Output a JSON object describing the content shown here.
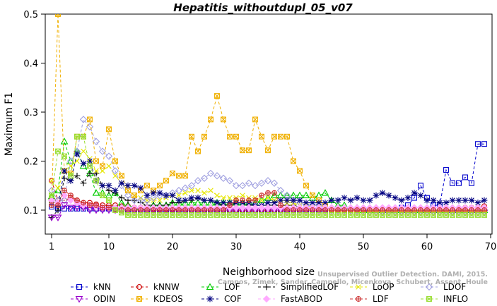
{
  "chart_data": {
    "type": "line",
    "title": "Hepatitis_withoutdupl_05_v07",
    "xlabel": "Neighborhood size",
    "ylabel": "Maximum F1",
    "xlim": [
      1,
      70
    ],
    "ylim": [
      0.08,
      0.5
    ],
    "xticks": [
      "10",
      "20",
      "30",
      "40",
      "50",
      "60",
      "70"
    ],
    "xtick_first": "1",
    "yticks": [
      "0.1",
      "0.2",
      "0.3",
      "0.4",
      "0.5"
    ],
    "legend_placement": "bottom",
    "watermark": [
      "Unsupervised Outlier Detection. DAMI, 2015.",
      "Campos, Zimek, Sander, Campello, Micenkova, Schubert, Assent, Houle"
    ],
    "series": [
      {
        "name": "kNN",
        "color": "#0000cc",
        "marker": "square",
        "x_start": 1,
        "values": [
          0.107,
          0.103,
          0.103,
          0.103,
          0.103,
          0.103,
          0.103,
          0.103,
          0.103,
          0.103,
          0.103,
          0.1,
          0.1,
          0.1,
          0.1,
          0.1,
          0.1,
          0.1,
          0.1,
          0.1,
          0.1,
          0.1,
          0.1,
          0.1,
          0.1,
          0.1,
          0.1,
          0.1,
          0.1,
          0.1,
          0.1,
          0.1,
          0.1,
          0.1,
          0.1,
          0.1,
          0.1,
          0.1,
          0.1,
          0.1,
          0.1,
          0.1,
          0.1,
          0.1,
          0.1,
          0.1,
          0.1,
          0.1,
          0.1,
          0.1,
          0.1,
          0.1,
          0.1,
          0.1,
          0.1,
          0.105,
          0.11,
          0.125,
          0.15,
          0.125,
          0.11,
          0.11,
          0.182,
          0.155,
          0.155,
          0.167,
          0.155,
          0.235,
          0.235
        ]
      },
      {
        "name": "kNNW",
        "color": "#cc0000",
        "marker": "circle",
        "x_start": 1,
        "values": [
          0.16,
          0.12,
          0.12,
          0.125,
          0.12,
          0.115,
          0.115,
          0.112,
          0.11,
          0.11,
          0.11,
          0.108,
          0.108,
          0.105,
          0.105,
          0.105,
          0.103,
          0.103,
          0.103,
          0.103,
          0.1,
          0.1,
          0.1,
          0.1,
          0.1,
          0.1,
          0.1,
          0.1,
          0.1,
          0.1,
          0.1,
          0.1,
          0.1,
          0.1,
          0.1,
          0.1,
          0.1,
          0.1,
          0.1,
          0.1,
          0.1,
          0.1,
          0.1,
          0.1,
          0.1,
          0.1,
          0.1,
          0.1,
          0.1,
          0.1,
          0.1,
          0.1,
          0.1,
          0.1,
          0.1,
          0.1,
          0.1,
          0.1,
          0.1,
          0.1,
          0.1,
          0.1,
          0.1,
          0.1,
          0.1,
          0.105,
          0.105,
          0.105,
          0.108
        ]
      },
      {
        "name": "LOF",
        "color": "#00cc00",
        "marker": "triangle-up",
        "x_start": 1,
        "values": [
          0.128,
          0.14,
          0.24,
          0.2,
          0.22,
          0.19,
          0.175,
          0.135,
          0.135,
          0.13,
          0.135,
          0.115,
          0.11,
          0.105,
          0.105,
          0.105,
          0.11,
          0.11,
          0.11,
          0.115,
          0.115,
          0.115,
          0.115,
          0.115,
          0.115,
          0.115,
          0.115,
          0.115,
          0.115,
          0.115,
          0.115,
          0.115,
          0.115,
          0.12,
          0.125,
          0.13,
          0.13,
          0.13,
          0.13,
          0.13,
          0.13,
          0.125,
          0.13,
          0.135,
          0.12,
          0.11,
          0.11,
          0.105,
          0.105,
          0.1,
          0.1,
          0.1,
          0.1,
          0.1,
          0.1,
          0.1,
          0.1,
          0.1,
          0.1,
          0.1,
          0.1,
          0.1,
          0.1,
          0.1,
          0.1,
          0.1,
          0.1,
          0.1,
          0.1
        ]
      },
      {
        "name": "SimplifiedLOF",
        "color": "#000000",
        "marker": "plus",
        "x_start": 1,
        "values": [
          0.085,
          0.1,
          0.165,
          0.16,
          0.17,
          0.155,
          0.175,
          0.175,
          0.15,
          0.14,
          0.135,
          0.125,
          0.12,
          0.12,
          0.115,
          0.11,
          0.11,
          0.11,
          0.11,
          0.115,
          0.115,
          0.12,
          0.12,
          0.125,
          0.12,
          0.12,
          0.115,
          0.11,
          0.11,
          0.115,
          0.115,
          0.11,
          0.11,
          0.11,
          0.11,
          0.11,
          0.11,
          0.11,
          0.11,
          0.105,
          0.105,
          0.105,
          0.105,
          0.1,
          0.1,
          0.1,
          0.1,
          0.1,
          0.1,
          0.1,
          0.1,
          0.1,
          0.1,
          0.1,
          0.1,
          0.1,
          0.1,
          0.1,
          0.1,
          0.1,
          0.1,
          0.1,
          0.1,
          0.1,
          0.1,
          0.1,
          0.1,
          0.1,
          0.1
        ]
      },
      {
        "name": "LoOP",
        "color": "#e6e600",
        "marker": "x",
        "x_start": 1,
        "values": [
          0.16,
          0.145,
          0.18,
          0.19,
          0.2,
          0.22,
          0.205,
          0.18,
          0.18,
          0.19,
          0.17,
          0.155,
          0.14,
          0.13,
          0.125,
          0.12,
          0.12,
          0.12,
          0.125,
          0.13,
          0.13,
          0.135,
          0.14,
          0.14,
          0.135,
          0.14,
          0.13,
          0.125,
          0.125,
          0.125,
          0.13,
          0.125,
          0.125,
          0.12,
          0.125,
          0.12,
          0.12,
          0.115,
          0.115,
          0.11,
          0.11,
          0.105,
          0.105,
          0.1,
          0.1,
          0.1,
          0.1,
          0.1,
          0.1,
          0.1,
          0.1,
          0.1,
          0.1,
          0.1,
          0.1,
          0.1,
          0.1,
          0.1,
          0.1,
          0.1,
          0.1,
          0.1,
          0.1,
          0.1,
          0.1,
          0.1,
          0.1,
          0.1,
          0.1
        ]
      },
      {
        "name": "LDOF",
        "color": "#a0a0e0",
        "marker": "diamond",
        "x_start": 1,
        "values": [
          0.14,
          0.12,
          0.12,
          0.2,
          0.22,
          0.285,
          0.27,
          0.24,
          0.22,
          0.21,
          0.18,
          0.15,
          0.13,
          0.12,
          0.12,
          0.12,
          0.125,
          0.13,
          0.13,
          0.135,
          0.14,
          0.145,
          0.15,
          0.16,
          0.165,
          0.175,
          0.17,
          0.165,
          0.16,
          0.15,
          0.15,
          0.155,
          0.15,
          0.155,
          0.16,
          0.155,
          0.14,
          0.13,
          0.12,
          0.115,
          0.11,
          0.11,
          0.11,
          0.105,
          0.105,
          0.1,
          0.1,
          0.1,
          0.1,
          0.1,
          0.1,
          0.1,
          0.1,
          0.1,
          0.1,
          0.1,
          0.1,
          0.1,
          0.1,
          0.1,
          0.1,
          0.1,
          0.1,
          0.1,
          0.1,
          0.1,
          0.1,
          0.1,
          0.1
        ]
      },
      {
        "name": "ODIN",
        "color": "#9900cc",
        "marker": "triangle-down",
        "x_start": 1,
        "values": [
          0.085,
          0.085,
          0.11,
          0.105,
          0.105,
          0.105,
          0.1,
          0.1,
          0.1,
          0.1,
          0.1,
          0.1,
          0.1,
          0.1,
          0.1,
          0.1,
          0.1,
          0.1,
          0.1,
          0.1,
          0.1,
          0.1,
          0.1,
          0.1,
          0.1,
          0.1,
          0.1,
          0.1,
          0.1,
          0.1,
          0.1,
          0.1,
          0.1,
          0.1,
          0.1,
          0.1,
          0.1,
          0.1,
          0.1,
          0.1,
          0.1,
          0.1,
          0.1,
          0.1,
          0.1,
          0.1,
          0.1,
          0.1,
          0.1,
          0.1,
          0.095,
          0.095,
          0.095,
          0.095,
          0.095,
          0.095,
          0.095,
          0.095,
          0.095,
          0.095,
          0.095,
          0.095,
          0.095,
          0.095,
          0.095,
          0.095,
          0.095,
          0.095,
          0.095
        ]
      },
      {
        "name": "KDEOS",
        "color": "#f0b000",
        "marker": "square-x",
        "x_start": 1,
        "values": [
          0.12,
          0.5,
          0.18,
          0.175,
          0.25,
          0.25,
          0.285,
          0.2,
          0.19,
          0.265,
          0.2,
          0.17,
          0.14,
          0.13,
          0.14,
          0.15,
          0.14,
          0.15,
          0.16,
          0.175,
          0.17,
          0.17,
          0.25,
          0.22,
          0.25,
          0.285,
          0.333,
          0.285,
          0.25,
          0.25,
          0.222,
          0.222,
          0.285,
          0.25,
          0.222,
          0.25,
          0.25,
          0.25,
          0.2,
          0.18,
          0.15,
          0.13,
          0.12,
          0.11,
          0.1,
          0.1,
          0.1,
          0.1,
          0.1,
          0.1,
          0.1,
          0.1,
          0.1,
          0.1,
          0.1,
          0.1,
          0.1,
          0.1,
          0.1,
          0.1,
          0.1,
          0.1,
          0.1,
          0.1,
          0.1,
          0.1,
          0.1,
          0.1,
          0.1
        ]
      },
      {
        "name": "COF",
        "color": "#000080",
        "marker": "asterisk",
        "x_start": 1,
        "values": [
          0.12,
          0.11,
          0.18,
          0.16,
          0.215,
          0.195,
          0.2,
          0.16,
          0.15,
          0.15,
          0.14,
          0.155,
          0.15,
          0.15,
          0.145,
          0.13,
          0.135,
          0.135,
          0.13,
          0.13,
          0.12,
          0.12,
          0.125,
          0.125,
          0.12,
          0.12,
          0.115,
          0.115,
          0.115,
          0.115,
          0.115,
          0.115,
          0.11,
          0.11,
          0.115,
          0.115,
          0.12,
          0.12,
          0.12,
          0.12,
          0.115,
          0.115,
          0.115,
          0.115,
          0.12,
          0.12,
          0.125,
          0.12,
          0.125,
          0.12,
          0.12,
          0.13,
          0.135,
          0.13,
          0.125,
          0.12,
          0.125,
          0.135,
          0.13,
          0.12,
          0.12,
          0.115,
          0.115,
          0.12,
          0.12,
          0.12,
          0.12,
          0.115,
          0.12
        ]
      },
      {
        "name": "FastABOD",
        "color": "#ffaaff",
        "marker": "diamond-filled",
        "x_start": 1,
        "values": [
          0.12,
          0.115,
          0.13,
          0.12,
          0.115,
          0.11,
          0.11,
          0.108,
          0.105,
          0.105,
          0.105,
          0.105,
          0.105,
          0.105,
          0.105,
          0.105,
          0.105,
          0.105,
          0.105,
          0.105,
          0.105,
          0.105,
          0.105,
          0.105,
          0.105,
          0.105,
          0.105,
          0.105,
          0.105,
          0.105,
          0.105,
          0.105,
          0.105,
          0.105,
          0.105,
          0.105,
          0.105,
          0.105,
          0.105,
          0.105,
          0.105,
          0.105,
          0.105,
          0.105,
          0.105,
          0.105,
          0.105,
          0.105,
          0.105,
          0.105,
          0.105,
          0.105,
          0.105,
          0.105,
          0.105,
          0.105,
          0.105,
          0.105,
          0.105,
          0.105,
          0.105,
          0.105,
          0.105,
          0.105,
          0.105,
          0.105,
          0.105,
          0.105,
          0.105
        ]
      },
      {
        "name": "LDF",
        "color": "#cc3333",
        "marker": "circle-plus",
        "x_start": 1,
        "values": [
          0.11,
          0.11,
          0.14,
          0.13,
          0.12,
          0.115,
          0.11,
          0.11,
          0.105,
          0.105,
          0.1,
          0.1,
          0.1,
          0.1,
          0.1,
          0.1,
          0.1,
          0.1,
          0.1,
          0.1,
          0.1,
          0.1,
          0.1,
          0.1,
          0.1,
          0.1,
          0.1,
          0.1,
          0.11,
          0.12,
          0.12,
          0.12,
          0.12,
          0.13,
          0.135,
          0.135,
          0.11,
          0.1,
          0.1,
          0.1,
          0.1,
          0.1,
          0.1,
          0.1,
          0.1,
          0.1,
          0.1,
          0.1,
          0.1,
          0.1,
          0.1,
          0.1,
          0.1,
          0.1,
          0.1,
          0.1,
          0.1,
          0.1,
          0.1,
          0.1,
          0.1,
          0.1,
          0.1,
          0.1,
          0.1,
          0.1,
          0.1,
          0.1,
          0.1
        ]
      },
      {
        "name": "INFLO",
        "color": "#99dd33",
        "marker": "square-asterisk",
        "x_start": 1,
        "values": [
          0.13,
          0.22,
          0.21,
          0.17,
          0.25,
          0.25,
          0.19,
          0.16,
          0.13,
          0.12,
          0.1,
          0.095,
          0.09,
          0.09,
          0.09,
          0.09,
          0.09,
          0.09,
          0.09,
          0.09,
          0.09,
          0.09,
          0.09,
          0.09,
          0.09,
          0.09,
          0.09,
          0.09,
          0.09,
          0.09,
          0.09,
          0.09,
          0.09,
          0.09,
          0.09,
          0.09,
          0.09,
          0.09,
          0.09,
          0.09,
          0.09,
          0.09,
          0.09,
          0.09,
          0.09,
          0.09,
          0.09,
          0.09,
          0.09,
          0.09,
          0.09,
          0.09,
          0.09,
          0.09,
          0.09,
          0.09,
          0.09,
          0.09,
          0.09,
          0.09,
          0.09,
          0.09,
          0.09,
          0.09,
          0.09,
          0.09,
          0.09,
          0.09,
          0.09
        ]
      }
    ]
  }
}
